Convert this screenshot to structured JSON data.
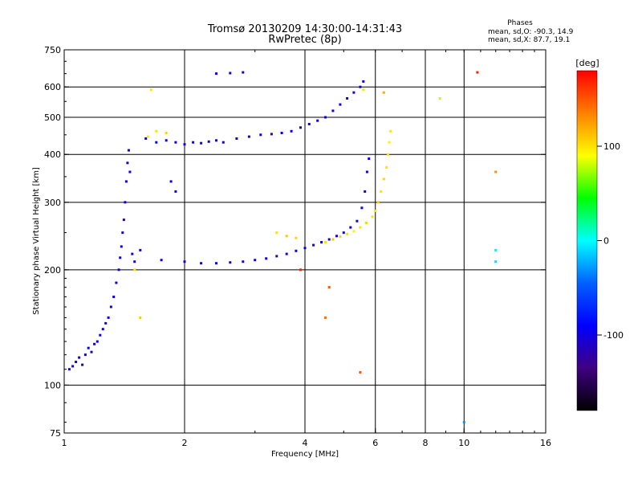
{
  "chart_data": {
    "type": "scatter",
    "title": "Tromsø 20130209 14:30:00-14:31:43",
    "subtitle": "RwPretec (8p)",
    "stats": {
      "heading": "Phases",
      "line_o": "mean, sd,O: -90.3, 14.9",
      "line_x": "mean, sd,X:  87.7, 19.1"
    },
    "xlabel": "Frequency [MHz]",
    "ylabel": "Stationary phase Virtual Height [km]",
    "x_scale": "log",
    "y_scale": "log",
    "xlim": [
      1,
      16
    ],
    "ylim": [
      75,
      750
    ],
    "x_ticks": [
      1,
      2,
      4,
      6,
      8,
      10,
      16
    ],
    "x_tick_labels": [
      "1",
      "2",
      "4",
      "6",
      "8",
      "10",
      "16"
    ],
    "y_ticks": [
      75,
      100,
      200,
      300,
      400,
      500,
      600,
      750
    ],
    "y_tick_labels": [
      "75",
      "100",
      "200",
      "300",
      "400",
      "500",
      "600",
      "750"
    ],
    "grid": true,
    "grid_x": [
      2,
      4,
      6,
      8,
      10
    ],
    "grid_y": [
      100,
      200,
      300,
      400,
      500,
      600
    ],
    "colorbar": {
      "label": "[deg]",
      "range": [
        -180,
        180
      ],
      "ticks": [
        100,
        0,
        -100
      ],
      "tick_labels": [
        "100",
        "0",
        "-100"
      ],
      "colors": [
        "#ff0000",
        "#ff8000",
        "#ffff00",
        "#00ff00",
        "#00ffff",
        "#0060ff",
        "#0000ff",
        "#400080",
        "#000000"
      ]
    },
    "series": [
      {
        "points": [
          [
            1.03,
            110,
            -100
          ],
          [
            1.05,
            112,
            -95
          ],
          [
            1.07,
            115,
            -105
          ],
          [
            1.09,
            118,
            -100
          ],
          [
            1.11,
            113,
            -110
          ],
          [
            1.13,
            120,
            -100
          ],
          [
            1.15,
            125,
            -95
          ],
          [
            1.17,
            122,
            -100
          ],
          [
            1.19,
            128,
            -105
          ],
          [
            1.21,
            130,
            -100
          ],
          [
            1.23,
            135,
            -95
          ],
          [
            1.25,
            140,
            -100
          ],
          [
            1.27,
            145,
            -110
          ],
          [
            1.29,
            150,
            -100
          ],
          [
            1.31,
            160,
            -95
          ],
          [
            1.33,
            170,
            -100
          ],
          [
            1.35,
            185,
            -105
          ],
          [
            1.37,
            200,
            -100
          ],
          [
            1.38,
            215,
            -95
          ],
          [
            1.39,
            230,
            -100
          ],
          [
            1.4,
            250,
            -100
          ],
          [
            1.41,
            270,
            -110
          ],
          [
            1.42,
            300,
            -100
          ],
          [
            1.43,
            340,
            -100
          ],
          [
            1.44,
            380,
            -105
          ],
          [
            1.45,
            410,
            -100
          ],
          [
            1.46,
            360,
            -95
          ],
          [
            1.48,
            220,
            -100
          ],
          [
            1.5,
            210,
            -105
          ],
          [
            1.55,
            225,
            -100
          ],
          [
            1.6,
            440,
            -100
          ],
          [
            1.7,
            430,
            -95
          ],
          [
            1.8,
            435,
            -100
          ],
          [
            1.9,
            430,
            -105
          ],
          [
            2.0,
            425,
            -100
          ],
          [
            2.1,
            430,
            -100
          ],
          [
            2.2,
            428,
            -95
          ],
          [
            2.3,
            432,
            -100
          ],
          [
            2.4,
            435,
            -110
          ],
          [
            2.5,
            430,
            -100
          ],
          [
            2.7,
            440,
            -100
          ],
          [
            2.9,
            445,
            -105
          ],
          [
            3.1,
            450,
            -100
          ],
          [
            3.3,
            452,
            -130
          ],
          [
            3.5,
            455,
            -100
          ],
          [
            3.7,
            460,
            -100
          ],
          [
            3.9,
            470,
            -105
          ],
          [
            4.1,
            480,
            -100
          ],
          [
            4.3,
            490,
            -95
          ],
          [
            4.5,
            500,
            -100
          ],
          [
            4.7,
            520,
            -100
          ],
          [
            4.9,
            540,
            -100
          ],
          [
            5.1,
            560,
            -100
          ],
          [
            5.3,
            580,
            -105
          ],
          [
            5.5,
            600,
            -100
          ],
          [
            5.6,
            620,
            -100
          ],
          [
            1.75,
            212,
            -100
          ],
          [
            2.0,
            210,
            -105
          ],
          [
            2.2,
            208,
            -100
          ],
          [
            2.4,
            208,
            -95
          ],
          [
            2.6,
            209,
            -100
          ],
          [
            2.8,
            210,
            -100
          ],
          [
            3.0,
            212,
            -105
          ],
          [
            3.2,
            214,
            -100
          ],
          [
            3.4,
            217,
            -130
          ],
          [
            3.6,
            220,
            -100
          ],
          [
            3.8,
            224,
            -100
          ],
          [
            4.0,
            228,
            -95
          ],
          [
            4.2,
            232,
            -100
          ],
          [
            4.4,
            236,
            -100
          ],
          [
            4.6,
            240,
            -105
          ],
          [
            4.8,
            245,
            -100
          ],
          [
            5.0,
            250,
            -100
          ],
          [
            5.2,
            258,
            -100
          ],
          [
            5.4,
            268,
            -105
          ],
          [
            5.55,
            290,
            -100
          ],
          [
            5.65,
            320,
            -100
          ],
          [
            5.72,
            360,
            -100
          ],
          [
            5.78,
            390,
            -100
          ],
          [
            2.4,
            650,
            -100
          ],
          [
            2.6,
            652,
            -100
          ],
          [
            2.8,
            655,
            -100
          ],
          [
            1.9,
            320,
            -100
          ],
          [
            1.85,
            340,
            -100
          ]
        ]
      },
      {
        "points": [
          [
            4.5,
            236,
            100
          ],
          [
            4.7,
            240,
            110
          ],
          [
            4.9,
            244,
            105
          ],
          [
            5.1,
            248,
            100
          ],
          [
            5.3,
            252,
            95
          ],
          [
            5.5,
            258,
            100
          ],
          [
            5.7,
            265,
            105
          ],
          [
            5.9,
            275,
            100
          ],
          [
            6.0,
            285,
            100
          ],
          [
            6.1,
            300,
            110
          ],
          [
            6.2,
            320,
            100
          ],
          [
            6.3,
            345,
            105
          ],
          [
            6.4,
            370,
            100
          ],
          [
            6.45,
            400,
            100
          ],
          [
            6.5,
            430,
            95
          ],
          [
            6.55,
            460,
            100
          ],
          [
            3.4,
            250,
            100
          ],
          [
            3.6,
            245,
            110
          ],
          [
            3.8,
            242,
            105
          ],
          [
            1.62,
            445,
            100
          ],
          [
            1.7,
            460,
            100
          ],
          [
            1.8,
            455,
            105
          ],
          [
            1.65,
            590,
            100
          ],
          [
            8.7,
            560,
            80
          ],
          [
            12.0,
            360,
            130
          ],
          [
            10.8,
            655,
            170
          ],
          [
            12.0,
            210,
            -10
          ],
          [
            12.0,
            225,
            -5
          ],
          [
            10.0,
            80,
            -30
          ],
          [
            3.9,
            200,
            170
          ],
          [
            4.6,
            180,
            150
          ],
          [
            4.5,
            150,
            140
          ],
          [
            5.5,
            108,
            150
          ],
          [
            6.3,
            580,
            120
          ],
          [
            5.6,
            590,
            100
          ],
          [
            1.55,
            150,
            110
          ],
          [
            1.5,
            200,
            100
          ]
        ]
      }
    ]
  }
}
